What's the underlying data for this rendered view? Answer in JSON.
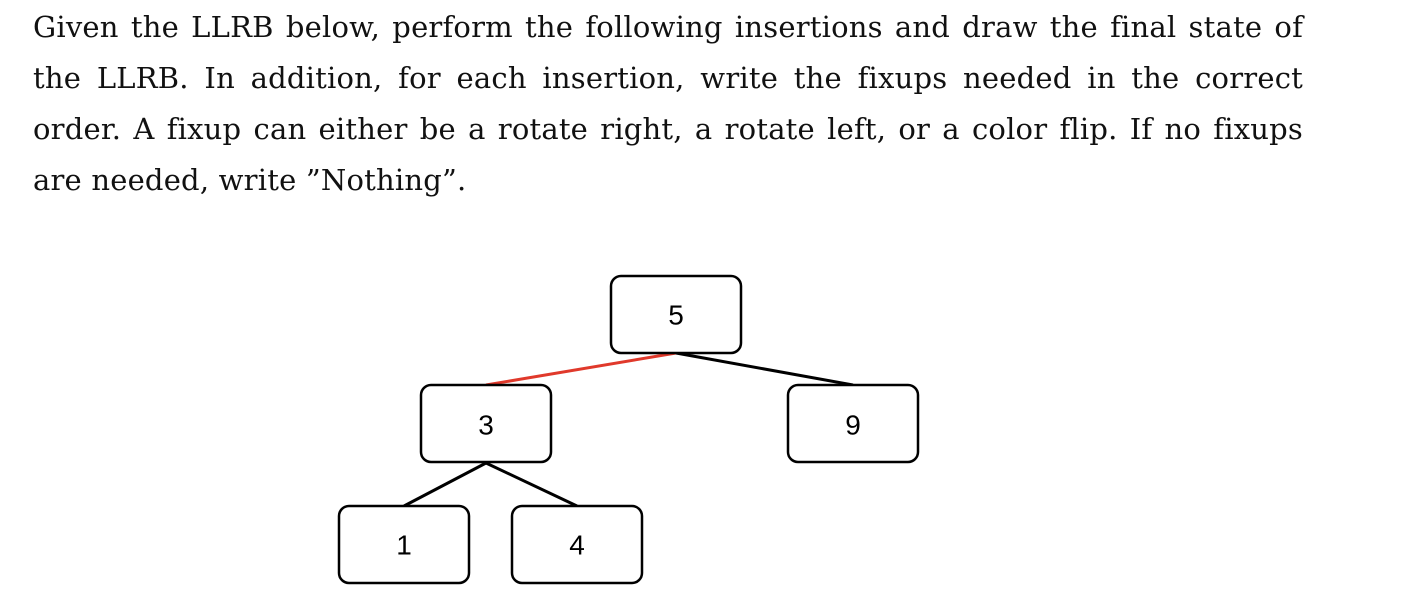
{
  "prompt": {
    "text": "Given the LLRB below, perform the following insertions and draw the final state of the LLRB. In addition, for each insertion, write the fixups needed in the correct order. A fixup can either be a rotate right, a rotate left, or a color flip. If no fixups are needed, write ”Nothing”."
  },
  "tree": {
    "nodes": {
      "root": "5",
      "left": "3",
      "right": "9",
      "left_left": "1",
      "left_right": "4"
    },
    "edges": [
      {
        "from": "5",
        "to": "3",
        "color": "red"
      },
      {
        "from": "5",
        "to": "9",
        "color": "black"
      },
      {
        "from": "3",
        "to": "1",
        "color": "black"
      },
      {
        "from": "3",
        "to": "4",
        "color": "black"
      }
    ],
    "colors": {
      "red_link": "#e0392b",
      "black_link": "#000000"
    }
  }
}
